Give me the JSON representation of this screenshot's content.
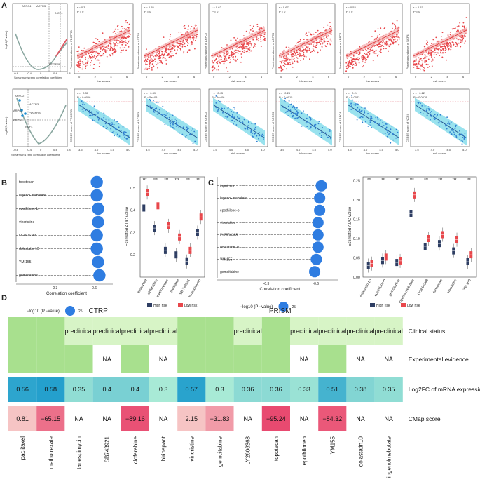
{
  "panel_labels": {
    "a": "A",
    "b": "B",
    "c": "C",
    "d": "D"
  },
  "panel_a": {
    "volcano_top": {
      "xlabel": "Spearman's rank correlation coefficient",
      "ylabel": "−log10(P-value)",
      "labels": [
        "ARPC4",
        "ACTR3",
        "NCF4",
        "PDGFRB"
      ],
      "x_ticks": [
        "-0.8",
        "-0.4",
        "0",
        "0.4",
        "0.8"
      ]
    },
    "volcano_bottom": {
      "xlabel": "Spearman's rank correlation coefficient",
      "ylabel": "−log10(P-value)",
      "labels": [
        "ARPC2",
        "ACTR3",
        "ARPC3",
        "PDGFRB",
        "ARPC4",
        "NCF4"
      ],
      "x_ticks": [
        "-0.8",
        "-0.4",
        "0",
        "0.4",
        "0.8"
      ]
    },
    "top_scatter": [
      {
        "r": "r = 0.3",
        "p": "P = 0",
        "ylabel": "Protein abundance of PDGFRB",
        "xlabel": "risk scores"
      },
      {
        "r": "r = 0.55",
        "p": "P = 0",
        "ylabel": "Protein abundance of ACTR3",
        "xlabel": "risk scores"
      },
      {
        "r": "r = 0.62",
        "p": "P = 0",
        "ylabel": "Protein abundance of ARPC2",
        "xlabel": "risk scores"
      },
      {
        "r": "r = 0.67",
        "p": "P = 0",
        "ylabel": "Protein abundance of ARPC3",
        "xlabel": "risk scores"
      },
      {
        "r": "r = 0.53",
        "p": "P = 0",
        "ylabel": "Protein abundance of ARPC4",
        "xlabel": "risk scores"
      },
      {
        "r": "r = 0.57",
        "p": "P = 0",
        "ylabel": "Protein abundance of NCF4",
        "xlabel": "risk scores"
      }
    ],
    "bottom_scatter": [
      {
        "r": "r = −0.31",
        "p": "P = 0.0016",
        "ylabel": "CERES score of PDGFRB",
        "xlabel": "risk scores"
      },
      {
        "r": "r = −0.39",
        "p": "P = 5e−05",
        "ylabel": "CERES score of ACTR3",
        "xlabel": "risk scores"
      },
      {
        "r": "r = −0.43",
        "p": "P = 5e−06",
        "ylabel": "CERES score of ARPC2",
        "xlabel": "risk scores"
      },
      {
        "r": "r = −0.28",
        "p": "P = 0.0015",
        "ylabel": "CERES score of ARPC3",
        "xlabel": "risk scores"
      },
      {
        "r": "r = −0.24",
        "p": "P = 0.0043",
        "ylabel": "CERES score of ARPC4",
        "xlabel": "risk scores"
      },
      {
        "r": "r = −0.22",
        "p": "P = 0.0079",
        "ylabel": "CERES score of NCF4",
        "xlabel": "risk scores"
      }
    ],
    "x_ticks_top": [
      "0",
      "2",
      "4",
      "6"
    ],
    "x_ticks_bottom": [
      "3.5",
      "4.0",
      "4.5",
      "5.0"
    ]
  },
  "chart_data": [
    {
      "type": "scatter",
      "title": "CTRP compound correlation (lollipop)",
      "categories": [
        "topotecan",
        "ingenol-mebutate",
        "epothilone-b",
        "vincristine",
        "LY2606368",
        "dolastatin-10",
        "YM-155",
        "gemcitabine"
      ],
      "values": [
        -0.62,
        -0.62,
        -0.63,
        -0.63,
        -0.62,
        -0.62,
        -0.63,
        -0.64
      ],
      "xlabel": "Correlation coefficient",
      "x_ticks": [
        "-0.3",
        "-0.6"
      ],
      "legend_label": "−log10 (P −value)",
      "legend_value": "25"
    },
    {
      "type": "box",
      "title": "CTRP estimated AUC",
      "ylabel": "Estimated AUC value",
      "categories": [
        "birinapant",
        "clofarabine",
        "methotrexate",
        "paclitaxel",
        "SB-743921",
        "tanespimycin"
      ],
      "series": [
        {
          "name": "High risk",
          "color": "#2e3e63",
          "medians": [
            0.41,
            0.32,
            0.22,
            0.2,
            0.17,
            0.3
          ]
        },
        {
          "name": "Low risk",
          "color": "#e8474b",
          "medians": [
            0.48,
            0.42,
            0.33,
            0.28,
            0.22,
            0.37
          ]
        }
      ],
      "significance": "***",
      "ylim": [
        0.1,
        0.55
      ],
      "y_ticks": [
        "0.2",
        "0.3",
        "0.4",
        "0.5"
      ],
      "legend": [
        "High risk",
        "Low risk"
      ]
    },
    {
      "type": "scatter",
      "title": "PRISM compound correlation (lollipop)",
      "categories": [
        "topotecan",
        "ingenol-mebutate",
        "epothilone-b",
        "vincristine",
        "LY2606368",
        "dolastatin-10",
        "YM-155",
        "gemcitabine"
      ],
      "values": [
        -0.63,
        -0.62,
        -0.62,
        -0.61,
        -0.61,
        -0.61,
        -0.6,
        -0.59
      ],
      "xlabel": "Correlation coefficient",
      "x_ticks": [
        "-0.3",
        "-0.6"
      ],
      "legend_label": "−log10 (P −value)",
      "legend_value": "25"
    },
    {
      "type": "box",
      "title": "PRISM estimated AUC",
      "ylabel": "Estimated AUC value",
      "categories": [
        "dolastatin-10",
        "epothilone-b",
        "gemcitabine",
        "ingenol-mebutate",
        "LY2606368",
        "topotecan",
        "vincristine",
        "YM-155"
      ],
      "series": [
        {
          "name": "High risk",
          "color": "#2e3e63",
          "medians": [
            0.03,
            0.043,
            0.038,
            0.165,
            0.08,
            0.087,
            0.068,
            0.04
          ]
        },
        {
          "name": "Low risk",
          "color": "#e8474b",
          "medians": [
            0.035,
            0.052,
            0.042,
            0.213,
            0.1,
            0.11,
            0.097,
            0.058
          ]
        }
      ],
      "significance": "***",
      "ylim": [
        0.0,
        0.26
      ],
      "y_ticks": [
        "0.00",
        "0.05",
        "0.10",
        "0.15",
        "0.20",
        "0.25"
      ],
      "legend": [
        "High risk",
        "Low risk"
      ]
    },
    {
      "type": "heatmap",
      "title": "Candidate compounds evidence",
      "groups": [
        "CTRP",
        "PRISM"
      ],
      "columns": [
        "paclitaxel",
        "methotrexate",
        "tanespimycin",
        "SB743921",
        "clofarabine",
        "birinapant",
        "vincristine",
        "gemcitabine",
        "LY2606368",
        "topotecan",
        "epothiloneb",
        "YM155",
        "dolastatin10",
        "ingenolmebutate"
      ],
      "rows": [
        "Clinical status",
        "Experimental evidence",
        "Log2FC of mRNA expression",
        "CMap score"
      ],
      "clinical_status": [
        "",
        "",
        "preclinical",
        "preclinical",
        "preclinical",
        "preclinical",
        "",
        "",
        "preclinical",
        "",
        "preclinical",
        "preclinical",
        "preclinical",
        "preclinical"
      ],
      "experimental_evidence": [
        "",
        "",
        "",
        "NA",
        "",
        "NA",
        "",
        "",
        "",
        "",
        "NA",
        "",
        "NA",
        "NA"
      ],
      "log2fc_values": [
        0.56,
        0.58,
        0.35,
        0.4,
        0.4,
        0.3,
        0.57,
        0.3,
        0.36,
        0.36,
        0.33,
        0.51,
        0.38,
        0.35
      ],
      "log2fc": [
        "0.56",
        "0.58",
        "0.35",
        "0.4",
        "0.4",
        "0.3",
        "0.57",
        "0.3",
        "0.36",
        "0.36",
        "0.33",
        "0.51",
        "0.38",
        "0.35"
      ],
      "cmap_values": [
        0.81,
        -65.15,
        null,
        null,
        -89.16,
        null,
        2.15,
        -31.83,
        null,
        -95.24,
        null,
        -84.32,
        null,
        null
      ],
      "cmap": [
        "0.81",
        "−65.15",
        "NA",
        "NA",
        "−89.16",
        "NA",
        "2.15",
        "−31.83",
        "NA",
        "−95.24",
        "NA",
        "−84.32",
        "NA",
        "NA"
      ]
    }
  ]
}
